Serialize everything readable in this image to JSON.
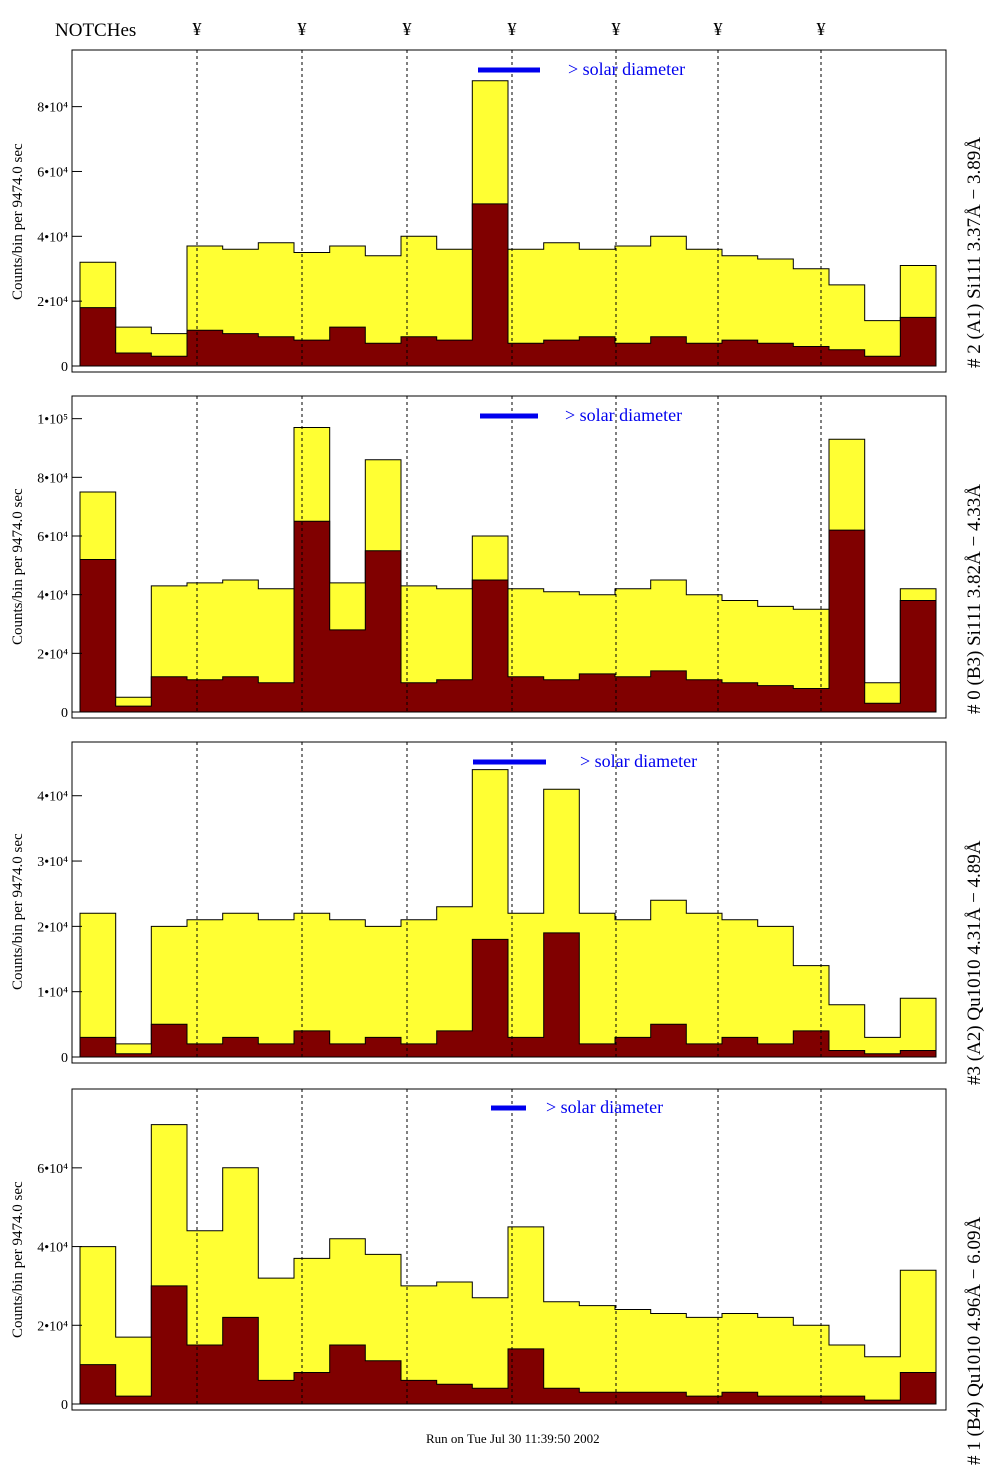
{
  "header": {
    "notches_label": "NOTCHes",
    "notch_marker": "¥"
  },
  "footer": {
    "run_info": "Run on Tue Jul 30 11:39:50 2002"
  },
  "colors": {
    "fill_total": "#ffff33",
    "fill_solar": "#800000",
    "legend_bar": "#0000ee",
    "annotation": "#0000aa"
  },
  "chart_data": [
    {
      "type": "area",
      "panel_label": "# 2 (A1) Si111  3.37Å − 3.89Å",
      "ylabel": "Counts/bin per   9474.0 sec",
      "legend_text": "> solar diameter",
      "ylim": [
        0,
        95000
      ],
      "yticks": [
        "0",
        "2•10⁴",
        "4•10⁴",
        "6•10⁴",
        "8•10⁴"
      ],
      "ytick_values": [
        0,
        20000,
        40000,
        60000,
        80000
      ],
      "series": [
        {
          "values": [
            32000,
            12000,
            10000,
            37000,
            36000,
            38000,
            35000,
            37000,
            34000,
            40000,
            36000,
            88000,
            36000,
            38000,
            36000,
            37000,
            40000,
            36000,
            34000,
            33000,
            30000,
            25000,
            14000,
            31000
          ]
        },
        {
          "values": [
            18000,
            4000,
            3000,
            11000,
            10000,
            9000,
            8000,
            12000,
            7000,
            9000,
            8000,
            50000,
            7000,
            8000,
            9000,
            7000,
            9000,
            7000,
            8000,
            7000,
            6000,
            5000,
            3000,
            15000
          ]
        }
      ]
    },
    {
      "type": "area",
      "panel_label": "# 0 (B3) Si111  3.82Å − 4.33Å",
      "ylabel": "Counts/bin per   9474.0 sec",
      "legend_text": "> solar diameter",
      "ylim": [
        0,
        105000
      ],
      "yticks": [
        "0",
        "2•10⁴",
        "4•10⁴",
        "6•10⁴",
        "8•10⁴",
        "1•10⁵"
      ],
      "ytick_values": [
        0,
        20000,
        40000,
        60000,
        80000,
        100000
      ],
      "series": [
        {
          "values": [
            75000,
            5000,
            43000,
            44000,
            45000,
            42000,
            97000,
            44000,
            86000,
            43000,
            42000,
            60000,
            42000,
            41000,
            40000,
            42000,
            45000,
            40000,
            38000,
            36000,
            35000,
            93000,
            10000,
            42000
          ]
        },
        {
          "values": [
            52000,
            2000,
            12000,
            11000,
            12000,
            10000,
            65000,
            28000,
            55000,
            10000,
            11000,
            45000,
            12000,
            11000,
            13000,
            12000,
            14000,
            11000,
            10000,
            9000,
            8000,
            62000,
            3000,
            38000
          ]
        }
      ]
    },
    {
      "type": "area",
      "panel_label": "#3 (A2) Qu1010  4.31Å − 4.89Å",
      "ylabel": "Counts/bin per   9474.0 sec",
      "legend_text": "> solar diameter",
      "ylim": [
        0,
        47000
      ],
      "yticks": [
        "0",
        "1•10⁴",
        "2•10⁴",
        "3•10⁴",
        "4•10⁴"
      ],
      "ytick_values": [
        0,
        10000,
        20000,
        30000,
        40000
      ],
      "series": [
        {
          "values": [
            22000,
            2000,
            20000,
            21000,
            22000,
            21000,
            22000,
            21000,
            20000,
            21000,
            23000,
            44000,
            22000,
            41000,
            22000,
            21000,
            24000,
            22000,
            21000,
            20000,
            14000,
            8000,
            3000,
            9000
          ]
        },
        {
          "values": [
            3000,
            500,
            5000,
            2000,
            3000,
            2000,
            4000,
            2000,
            3000,
            2000,
            4000,
            18000,
            3000,
            19000,
            2000,
            3000,
            5000,
            2000,
            3000,
            2000,
            4000,
            1000,
            500,
            1000
          ]
        }
      ]
    },
    {
      "type": "area",
      "panel_label": "# 1 (B4) Qu1010 4.96Å − 6.09Å",
      "ylabel": "Counts/bin per   9474.0 sec",
      "legend_text": "> solar diameter",
      "ylim": [
        0,
        78000
      ],
      "yticks": [
        "0",
        "2•10⁴",
        "4•10⁴",
        "6•10⁴"
      ],
      "ytick_values": [
        0,
        20000,
        40000,
        60000
      ],
      "series": [
        {
          "values": [
            40000,
            17000,
            71000,
            44000,
            60000,
            32000,
            37000,
            42000,
            38000,
            30000,
            31000,
            27000,
            45000,
            26000,
            25000,
            24000,
            23000,
            22000,
            23000,
            22000,
            20000,
            15000,
            12000,
            34000
          ]
        },
        {
          "values": [
            10000,
            2000,
            30000,
            15000,
            22000,
            6000,
            8000,
            15000,
            11000,
            6000,
            5000,
            4000,
            14000,
            4000,
            3000,
            3000,
            3000,
            2000,
            3000,
            2000,
            2000,
            2000,
            1000,
            8000
          ]
        }
      ]
    }
  ]
}
